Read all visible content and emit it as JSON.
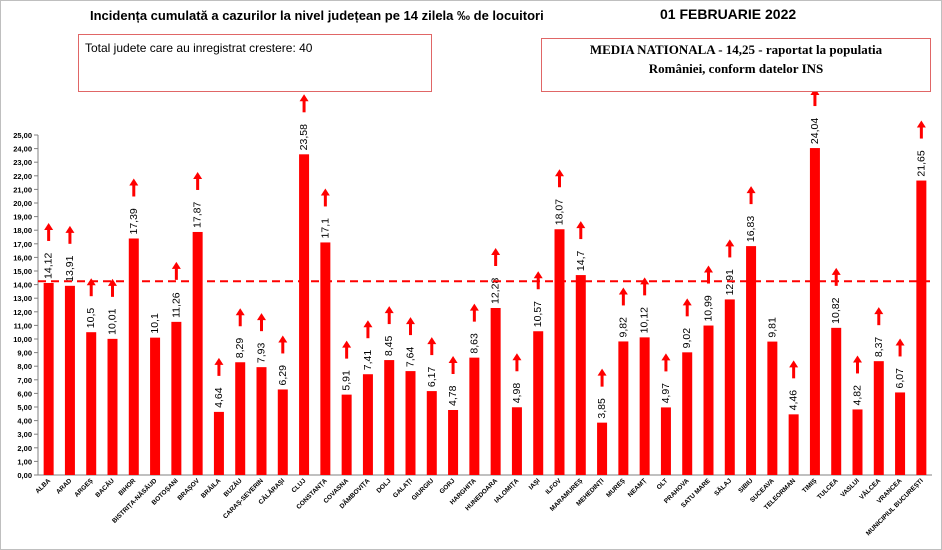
{
  "header": {
    "title": "Incidența cumulată a cazurilor la nivel județean pe 14 zilela ‰ de locuitori",
    "date": "01 FEBRUARIE 2022"
  },
  "annotations": {
    "increase_box": "Total judete care au inregistrat crestere: 40",
    "national_line1": "MEDIA NATIONALA  - 14,25 -  raportat la populatia",
    "national_line2": "României, conform datelor INS"
  },
  "colors": {
    "bar": "#ff0000",
    "reference_line": "#ff0000",
    "box_border": "#e06666"
  },
  "chart_data": {
    "type": "bar",
    "ylim": [
      0,
      25
    ],
    "ytick_step": 1,
    "reference_line": 14.25,
    "grid": false,
    "categories": [
      "ALBA",
      "ARAD",
      "ARGEȘ",
      "BACĂU",
      "BIHOR",
      "BISTRIȚA-NĂSĂUD",
      "BOTOȘANI",
      "BRAȘOV",
      "BRĂILA",
      "BUZĂU",
      "CARAȘ-SEVERIN",
      "CĂLĂRAȘI",
      "CLUJ",
      "CONSTANȚA",
      "COVASNA",
      "DÂMBOVIȚA",
      "DOLJ",
      "GALAȚI",
      "GIURGIU",
      "GORJ",
      "HARGHITA",
      "HUNEDOARA",
      "IALOMIȚA",
      "IAȘI",
      "ILFOV",
      "MARAMUREȘ",
      "MEHEDINȚI",
      "MUREȘ",
      "NEAMȚ",
      "OLT",
      "PRAHOVA",
      "SATU MARE",
      "SĂLAJ",
      "SIBIU",
      "SUCEAVA",
      "TELEORMAN",
      "TIMIȘ",
      "TULCEA",
      "VASLUI",
      "VÂLCEA",
      "VRANCEA",
      "MUNICIPIUL BUCUREȘTI"
    ],
    "values": [
      14.12,
      13.91,
      10.5,
      10.01,
      17.39,
      10.1,
      11.26,
      17.87,
      4.64,
      8.29,
      7.93,
      6.29,
      23.58,
      17.1,
      5.91,
      7.41,
      8.45,
      7.64,
      6.17,
      4.78,
      8.63,
      12.28,
      4.98,
      10.57,
      18.07,
      14.7,
      3.85,
      9.82,
      10.12,
      4.97,
      9.02,
      10.99,
      12.91,
      16.83,
      9.81,
      4.46,
      24.04,
      10.82,
      4.82,
      8.37,
      6.07,
      21.65
    ],
    "value_labels": [
      "14,12",
      "13,91",
      "10,5",
      "10,01",
      "17,39",
      "10,1",
      "11,26",
      "17,87",
      "4,64",
      "8,29",
      "7,93",
      "6,29",
      "23,58",
      "17,1",
      "5,91",
      "7,41",
      "8,45",
      "7,64",
      "6,17",
      "4,78",
      "8,63",
      "12,28",
      "4,98",
      "10,57",
      "18,07",
      "14,7",
      "3,85",
      "9,82",
      "10,12",
      "4,97",
      "9,02",
      "10,99",
      "12,91",
      "16,83",
      "9,81",
      "4,46",
      "24,04",
      "10,82",
      "4,82",
      "8,37",
      "6,07",
      "21,65"
    ],
    "trend_up": [
      true,
      true,
      true,
      true,
      true,
      false,
      true,
      true,
      true,
      true,
      true,
      true,
      true,
      true,
      true,
      true,
      true,
      true,
      true,
      true,
      true,
      true,
      true,
      true,
      true,
      true,
      true,
      true,
      true,
      true,
      true,
      true,
      true,
      true,
      false,
      true,
      true,
      true,
      true,
      true,
      true,
      true
    ]
  }
}
